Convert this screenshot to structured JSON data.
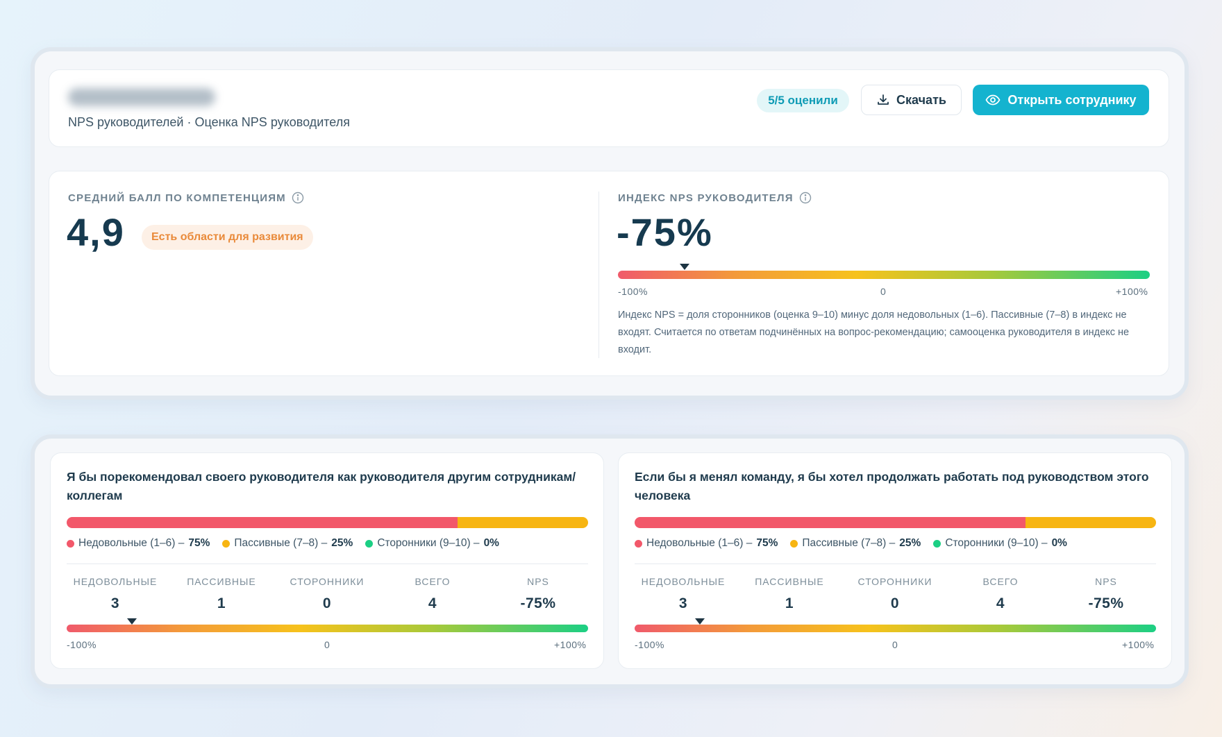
{
  "header": {
    "subtitle": "NPS руководителей · Оценка NPS руководителя",
    "rated_badge": "5/5 оценили",
    "download_label": "Скачать",
    "open_label": "Открыть сотруднику",
    "download_icon": "download-icon",
    "open_icon": "eye-icon"
  },
  "metrics": {
    "competency_label": "СРЕДНИЙ БАЛЛ ПО КОМПЕТЕНЦИЯМ",
    "competency_value": "4,9",
    "competency_badge": "Есть области для развития",
    "nps_label": "ИНДЕКС NPS РУКОВОДИТЕЛЯ",
    "nps_value": "-75%",
    "nps_index_percent": -75,
    "scale_min": "-100%",
    "scale_mid": "0",
    "scale_max": "+100%",
    "note": "Индекс NPS = доля сторонников (оценка 9–10) минус доля недовольных (1–6). Пассивные (7–8) в индекс не входят. Считается по ответам подчинённых на вопрос-рекомендацию; самооценка руководителя в индекс не входит."
  },
  "questions": [
    {
      "title": "Я бы порекомендовал своего руководителя как руководителя другим сотрудникам/ коллегам",
      "detractors_share": 75,
      "passives_share": 25,
      "promoters_share": 0,
      "legend": [
        {
          "label": "Недовольные (1–6) –",
          "value": "75%"
        },
        {
          "label": "Пассивные (7–8) –",
          "value": "25%"
        },
        {
          "label": "Сторонники (9–10) –",
          "value": "0%"
        }
      ],
      "stats": [
        {
          "label": "НЕДОВОЛЬНЫЕ",
          "value": "3"
        },
        {
          "label": "ПАССИВНЫЕ",
          "value": "1"
        },
        {
          "label": "СТОРОННИКИ",
          "value": "0"
        },
        {
          "label": "ВСЕГО",
          "value": "4"
        },
        {
          "label": "NPS",
          "value": "-75%"
        }
      ],
      "nps_percent": -75,
      "scale_min": "-100%",
      "scale_mid": "0",
      "scale_max": "+100%"
    },
    {
      "title": "Если бы я менял команду, я бы хотел продолжать работать под руководством этого человека",
      "detractors_share": 75,
      "passives_share": 25,
      "promoters_share": 0,
      "legend": [
        {
          "label": "Недовольные (1–6) –",
          "value": "75%"
        },
        {
          "label": "Пассивные (7–8) –",
          "value": "25%"
        },
        {
          "label": "Сторонники (9–10) –",
          "value": "0%"
        }
      ],
      "stats": [
        {
          "label": "НЕДОВОЛЬНЫЕ",
          "value": "3"
        },
        {
          "label": "ПАССИВНЫЕ",
          "value": "1"
        },
        {
          "label": "СТОРОННИКИ",
          "value": "0"
        },
        {
          "label": "ВСЕГО",
          "value": "4"
        },
        {
          "label": "NPS",
          "value": "-75%"
        }
      ],
      "nps_percent": -75,
      "scale_min": "-100%",
      "scale_mid": "0",
      "scale_max": "+100%"
    }
  ],
  "colors": {
    "accent": "#14b3cf",
    "detractors": "#f2586a",
    "passives": "#f7b512",
    "promoters": "#1ccf84",
    "warning_badge": "#e98a3a"
  }
}
